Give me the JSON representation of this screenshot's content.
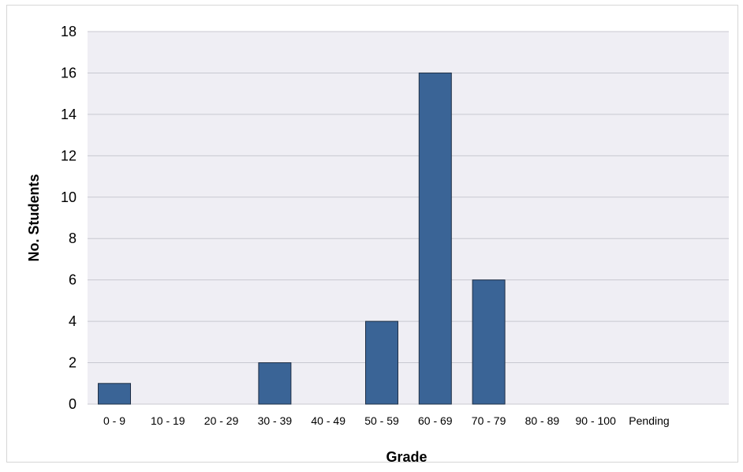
{
  "chart_data": {
    "type": "bar",
    "categories": [
      "0 - 9",
      "10 - 19",
      "20 - 29",
      "30 - 39",
      "40 - 49",
      "50 - 59",
      "60 - 69",
      "70 - 79",
      "80 - 89",
      "90 - 100",
      "Pending"
    ],
    "values": [
      1,
      0,
      0,
      2,
      0,
      4,
      16,
      6,
      0,
      0,
      0
    ],
    "title": "",
    "xlabel": "Grade",
    "ylabel": "No. Students",
    "ylim": [
      0,
      18
    ],
    "yticks": [
      0,
      2,
      4,
      6,
      8,
      10,
      12,
      14,
      16,
      18
    ],
    "grid": true,
    "legend": "none"
  },
  "colors": {
    "bar_fill": "#3a6496",
    "bar_stroke": "#1f2f45",
    "plot_bg": "#efeef4",
    "grid": "#c8c8d0"
  }
}
